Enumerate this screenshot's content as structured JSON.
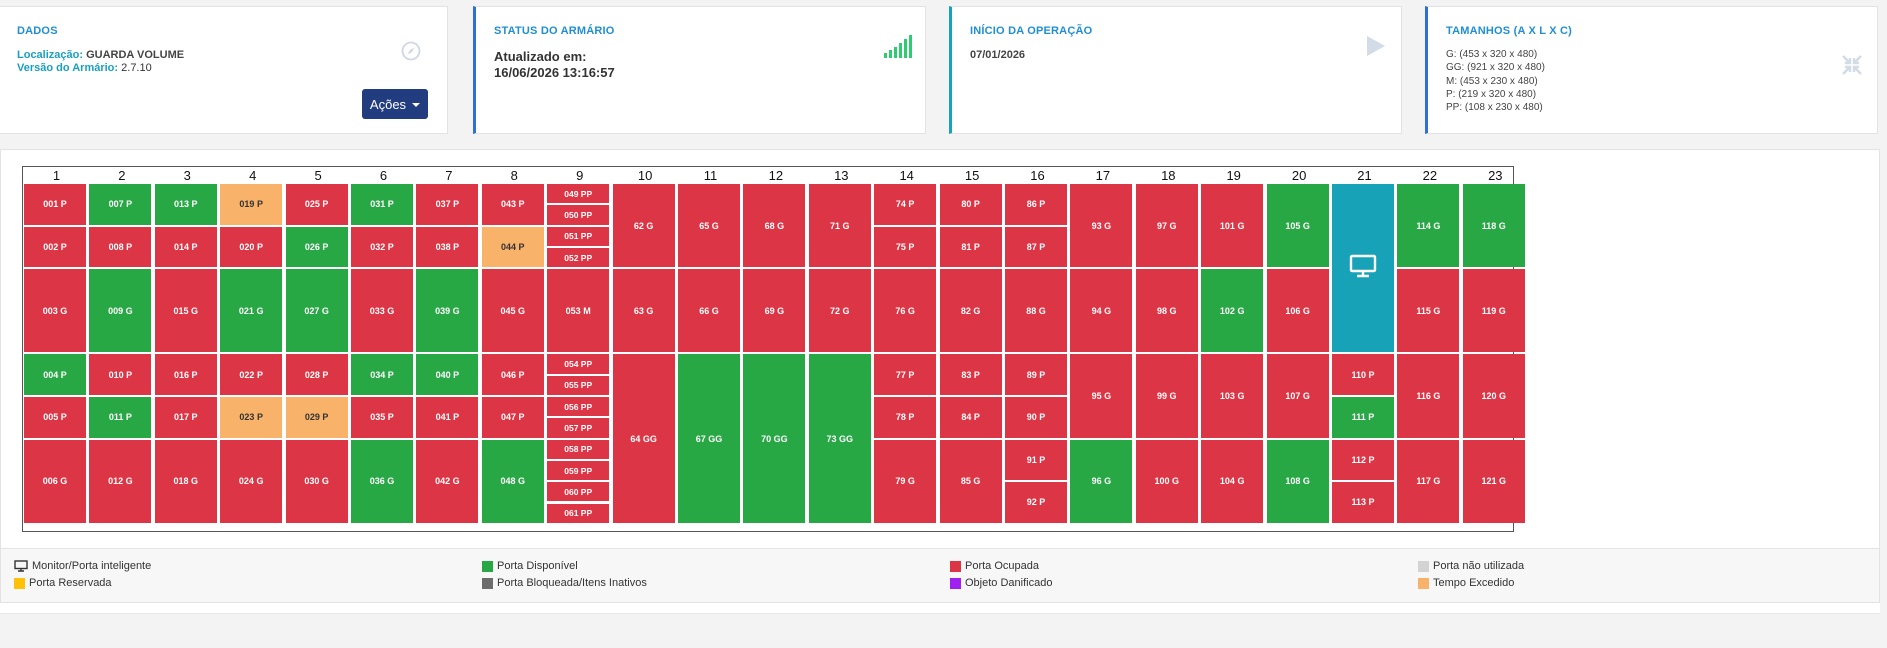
{
  "cards": {
    "dados": {
      "title": "DADOS",
      "location_label": "Localização:",
      "location_value": "GUARDA VOLUME",
      "version_label": "Versão do Armário:",
      "version_value": "2.7.10",
      "actions_label": "Ações",
      "icon": "compass-icon"
    },
    "status": {
      "title": "STATUS DO ARMÁRIO",
      "updated_label": "Atualizado em:",
      "updated_value": "16/06/2026 13:16:57",
      "icon": "signal-icon"
    },
    "inicio": {
      "title": "INÍCIO DA OPERAÇÃO",
      "date": "07/01/2026",
      "icon": "play-icon"
    },
    "tamanhos": {
      "title": "TAMANHOS (A X L X C)",
      "lines": [
        "G: (453 x 320 x 480)",
        "GG: (921 x 320 x 480)",
        "M: (453 x 230 x 480)",
        "P: (219 x 320 x 480)",
        "PP: (108 x 230 x 480)"
      ],
      "icon": "compress-icon"
    }
  },
  "colors": {
    "occupied": "#dc3545",
    "available": "#28a745",
    "timeout": "#f8b26a",
    "monitor": "#17a2b8"
  },
  "columns": [
    {
      "n": "1",
      "cells": [
        {
          "l": "001 P",
          "s": "o",
          "u": 1
        },
        {
          "l": "002 P",
          "s": "o",
          "u": 1
        },
        {
          "l": "003 G",
          "s": "o",
          "u": 2
        },
        {
          "l": "004 P",
          "s": "a",
          "u": 1
        },
        {
          "l": "005 P",
          "s": "o",
          "u": 1
        },
        {
          "l": "006 G",
          "s": "o",
          "u": 2
        }
      ]
    },
    {
      "n": "2",
      "cells": [
        {
          "l": "007 P",
          "s": "a",
          "u": 1
        },
        {
          "l": "008 P",
          "s": "o",
          "u": 1
        },
        {
          "l": "009 G",
          "s": "a",
          "u": 2
        },
        {
          "l": "010 P",
          "s": "o",
          "u": 1
        },
        {
          "l": "011 P",
          "s": "a",
          "u": 1
        },
        {
          "l": "012 G",
          "s": "o",
          "u": 2
        }
      ]
    },
    {
      "n": "3",
      "cells": [
        {
          "l": "013 P",
          "s": "a",
          "u": 1
        },
        {
          "l": "014 P",
          "s": "o",
          "u": 1
        },
        {
          "l": "015 G",
          "s": "o",
          "u": 2
        },
        {
          "l": "016 P",
          "s": "o",
          "u": 1
        },
        {
          "l": "017 P",
          "s": "o",
          "u": 1
        },
        {
          "l": "018 G",
          "s": "o",
          "u": 2
        }
      ]
    },
    {
      "n": "4",
      "cells": [
        {
          "l": "019 P",
          "s": "t",
          "u": 1
        },
        {
          "l": "020 P",
          "s": "o",
          "u": 1
        },
        {
          "l": "021 G",
          "s": "a",
          "u": 2
        },
        {
          "l": "022 P",
          "s": "o",
          "u": 1
        },
        {
          "l": "023 P",
          "s": "t",
          "u": 1
        },
        {
          "l": "024 G",
          "s": "o",
          "u": 2
        }
      ]
    },
    {
      "n": "5",
      "cells": [
        {
          "l": "025 P",
          "s": "o",
          "u": 1
        },
        {
          "l": "026 P",
          "s": "a",
          "u": 1
        },
        {
          "l": "027 G",
          "s": "a",
          "u": 2
        },
        {
          "l": "028 P",
          "s": "o",
          "u": 1
        },
        {
          "l": "029 P",
          "s": "t",
          "u": 1
        },
        {
          "l": "030 G",
          "s": "o",
          "u": 2
        }
      ]
    },
    {
      "n": "6",
      "cells": [
        {
          "l": "031 P",
          "s": "a",
          "u": 1
        },
        {
          "l": "032 P",
          "s": "o",
          "u": 1
        },
        {
          "l": "033 G",
          "s": "o",
          "u": 2
        },
        {
          "l": "034 P",
          "s": "a",
          "u": 1
        },
        {
          "l": "035 P",
          "s": "o",
          "u": 1
        },
        {
          "l": "036 G",
          "s": "a",
          "u": 2
        }
      ]
    },
    {
      "n": "7",
      "cells": [
        {
          "l": "037 P",
          "s": "o",
          "u": 1
        },
        {
          "l": "038 P",
          "s": "o",
          "u": 1
        },
        {
          "l": "039 G",
          "s": "a",
          "u": 2
        },
        {
          "l": "040 P",
          "s": "a",
          "u": 1
        },
        {
          "l": "041 P",
          "s": "o",
          "u": 1
        },
        {
          "l": "042 G",
          "s": "o",
          "u": 2
        }
      ]
    },
    {
      "n": "8",
      "cells": [
        {
          "l": "043 P",
          "s": "o",
          "u": 1
        },
        {
          "l": "044 P",
          "s": "t",
          "u": 1
        },
        {
          "l": "045 G",
          "s": "o",
          "u": 2
        },
        {
          "l": "046 P",
          "s": "o",
          "u": 1
        },
        {
          "l": "047 P",
          "s": "o",
          "u": 1
        },
        {
          "l": "048 G",
          "s": "a",
          "u": 2
        }
      ]
    },
    {
      "n": "9",
      "cells": [
        {
          "l": "049 PP",
          "s": "o",
          "u": 0.5
        },
        {
          "l": "050 PP",
          "s": "o",
          "u": 0.5
        },
        {
          "l": "051 PP",
          "s": "o",
          "u": 0.5
        },
        {
          "l": "052 PP",
          "s": "o",
          "u": 0.5
        },
        {
          "l": "053 M",
          "s": "o",
          "u": 2
        },
        {
          "l": "054 PP",
          "s": "o",
          "u": 0.5
        },
        {
          "l": "055 PP",
          "s": "o",
          "u": 0.5
        },
        {
          "l": "056 PP",
          "s": "o",
          "u": 0.5
        },
        {
          "l": "057 PP",
          "s": "o",
          "u": 0.5
        },
        {
          "l": "058 PP",
          "s": "o",
          "u": 0.5
        },
        {
          "l": "059 PP",
          "s": "o",
          "u": 0.5
        },
        {
          "l": "060 PP",
          "s": "o",
          "u": 0.5
        },
        {
          "l": "061 PP",
          "s": "o",
          "u": 0.5
        }
      ]
    },
    {
      "n": "10",
      "cells": [
        {
          "l": "62 G",
          "s": "o",
          "u": 2
        },
        {
          "l": "63 G",
          "s": "o",
          "u": 2
        },
        {
          "l": "64 GG",
          "s": "o",
          "u": 4
        }
      ]
    },
    {
      "n": "11",
      "cells": [
        {
          "l": "65 G",
          "s": "o",
          "u": 2
        },
        {
          "l": "66 G",
          "s": "o",
          "u": 2
        },
        {
          "l": "67 GG",
          "s": "a",
          "u": 4
        }
      ]
    },
    {
      "n": "12",
      "cells": [
        {
          "l": "68 G",
          "s": "o",
          "u": 2
        },
        {
          "l": "69 G",
          "s": "o",
          "u": 2
        },
        {
          "l": "70 GG",
          "s": "a",
          "u": 4
        }
      ]
    },
    {
      "n": "13",
      "cells": [
        {
          "l": "71 G",
          "s": "o",
          "u": 2
        },
        {
          "l": "72 G",
          "s": "o",
          "u": 2
        },
        {
          "l": "73 GG",
          "s": "a",
          "u": 4
        }
      ]
    },
    {
      "n": "14",
      "cells": [
        {
          "l": "74 P",
          "s": "o",
          "u": 1
        },
        {
          "l": "75 P",
          "s": "o",
          "u": 1
        },
        {
          "l": "76 G",
          "s": "o",
          "u": 2
        },
        {
          "l": "77 P",
          "s": "o",
          "u": 1
        },
        {
          "l": "78 P",
          "s": "o",
          "u": 1
        },
        {
          "l": "79 G",
          "s": "o",
          "u": 2
        }
      ]
    },
    {
      "n": "15",
      "cells": [
        {
          "l": "80 P",
          "s": "o",
          "u": 1
        },
        {
          "l": "81 P",
          "s": "o",
          "u": 1
        },
        {
          "l": "82 G",
          "s": "o",
          "u": 2
        },
        {
          "l": "83 P",
          "s": "o",
          "u": 1
        },
        {
          "l": "84 P",
          "s": "o",
          "u": 1
        },
        {
          "l": "85 G",
          "s": "o",
          "u": 2
        }
      ]
    },
    {
      "n": "16",
      "cells": [
        {
          "l": "86 P",
          "s": "o",
          "u": 1
        },
        {
          "l": "87 P",
          "s": "o",
          "u": 1
        },
        {
          "l": "88 G",
          "s": "o",
          "u": 2
        },
        {
          "l": "89 P",
          "s": "o",
          "u": 1
        },
        {
          "l": "90 P",
          "s": "o",
          "u": 1
        },
        {
          "l": "91 P",
          "s": "o",
          "u": 1
        },
        {
          "l": "92 P",
          "s": "o",
          "u": 1
        }
      ]
    },
    {
      "n": "17",
      "cells": [
        {
          "l": "93 G",
          "s": "o",
          "u": 2
        },
        {
          "l": "94 G",
          "s": "o",
          "u": 2
        },
        {
          "l": "95 G",
          "s": "o",
          "u": 2
        },
        {
          "l": "96 G",
          "s": "a",
          "u": 2
        }
      ]
    },
    {
      "n": "18",
      "cells": [
        {
          "l": "97 G",
          "s": "o",
          "u": 2
        },
        {
          "l": "98 G",
          "s": "o",
          "u": 2
        },
        {
          "l": "99 G",
          "s": "o",
          "u": 2
        },
        {
          "l": "100 G",
          "s": "o",
          "u": 2
        }
      ]
    },
    {
      "n": "19",
      "cells": [
        {
          "l": "101 G",
          "s": "o",
          "u": 2
        },
        {
          "l": "102 G",
          "s": "a",
          "u": 2
        },
        {
          "l": "103 G",
          "s": "o",
          "u": 2
        },
        {
          "l": "104 G",
          "s": "o",
          "u": 2
        }
      ]
    },
    {
      "n": "20",
      "cells": [
        {
          "l": "105 G",
          "s": "a",
          "u": 2
        },
        {
          "l": "106 G",
          "s": "o",
          "u": 2
        },
        {
          "l": "107 G",
          "s": "o",
          "u": 2
        },
        {
          "l": "108 G",
          "s": "a",
          "u": 2
        }
      ]
    },
    {
      "n": "21",
      "cells": [
        {
          "l": "",
          "s": "m",
          "u": 4
        },
        {
          "l": "110 P",
          "s": "o",
          "u": 1
        },
        {
          "l": "111 P",
          "s": "a",
          "u": 1
        },
        {
          "l": "112 P",
          "s": "o",
          "u": 1
        },
        {
          "l": "113 P",
          "s": "o",
          "u": 1
        }
      ]
    },
    {
      "n": "22",
      "cells": [
        {
          "l": "114 G",
          "s": "a",
          "u": 2
        },
        {
          "l": "115 G",
          "s": "o",
          "u": 2
        },
        {
          "l": "116 G",
          "s": "o",
          "u": 2
        },
        {
          "l": "117 G",
          "s": "o",
          "u": 2
        }
      ]
    },
    {
      "n": "23",
      "cells": [
        {
          "l": "118 G",
          "s": "a",
          "u": 2
        },
        {
          "l": "119 G",
          "s": "o",
          "u": 2
        },
        {
          "l": "120 G",
          "s": "o",
          "u": 2
        },
        {
          "l": "121 G",
          "s": "o",
          "u": 2
        }
      ]
    }
  ],
  "legend": [
    {
      "label": "Monitor/Porta inteligente",
      "color": "",
      "icon": "monitor-icon"
    },
    {
      "label": "Porta Reservada",
      "color": "#ffc107"
    },
    {
      "label": "Porta Disponível",
      "color": "#28a745"
    },
    {
      "label": "Porta Bloqueada/Itens Inativos",
      "color": "#6c6c6c"
    },
    {
      "label": "Porta Ocupada",
      "color": "#dc3545"
    },
    {
      "label": "Objeto Danificado",
      "color": "#a020f0"
    },
    {
      "label": "Porta não utilizada",
      "color": "#d3d3d3"
    },
    {
      "label": "Tempo Excedido",
      "color": "#f8b26a"
    }
  ]
}
